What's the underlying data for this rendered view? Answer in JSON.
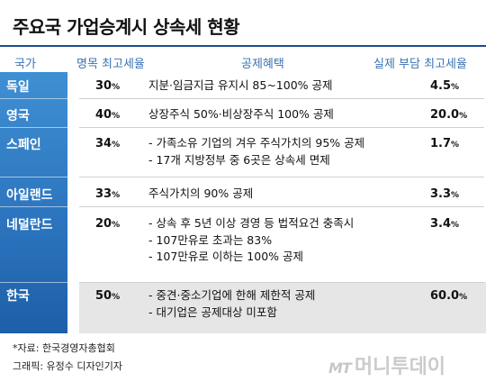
{
  "title": "주요국 가업승계시 상속세 현황",
  "header": {
    "country": "국가",
    "max_rate": "명목 최고세율",
    "benefit": "공제혜택",
    "burden": "실제 부담 최고세율"
  },
  "rows": [
    {
      "country": "독일",
      "rate": "30",
      "rate_unit": "%",
      "benefit": [
        "지분·임금지급 유지시 85~100% 공제"
      ],
      "burden": "4.5",
      "burden_unit": "%"
    },
    {
      "country": "영국",
      "rate": "40",
      "rate_unit": "%",
      "benefit": [
        "상장주식 50%·비상장주식 100% 공제"
      ],
      "burden": "20.0",
      "burden_unit": "%"
    },
    {
      "country": "스페인",
      "rate": "34",
      "rate_unit": "%",
      "benefit": [
        "- 가족소유 기업의 겨우 주식가치의 95% 공제",
        "- 17개 지방정부 중 6곳은 상속세 면제"
      ],
      "burden": "1.7",
      "burden_unit": "%"
    },
    {
      "country": "아일랜드",
      "rate": "33",
      "rate_unit": "%",
      "benefit": [
        "주식가치의 90% 공제"
      ],
      "burden": "3.3",
      "burden_unit": "%"
    },
    {
      "country": "네덜란드",
      "rate": "20",
      "rate_unit": "%",
      "benefit": [
        "- 상속 후 5년 이상 경영 등 법적요건 충족시",
        "- 107만유로 초과는 83%",
        "- 107만유로 이하는 100% 공제"
      ],
      "burden": "3.4",
      "burden_unit": "%"
    },
    {
      "country": "한국",
      "rate": "50",
      "rate_unit": "%",
      "benefit": [
        "- 중견·중소기업에 한해 제한적 공제",
        "- 대기업은 공제대상 미포함"
      ],
      "burden": "60.0",
      "burden_unit": "%"
    }
  ],
  "footer": {
    "source": "*자료: 한국경영자총협회",
    "graphic": "그래픽: 유정수 디자인기자"
  },
  "logo": {
    "mark": "MT",
    "name": "머니투데이"
  }
}
